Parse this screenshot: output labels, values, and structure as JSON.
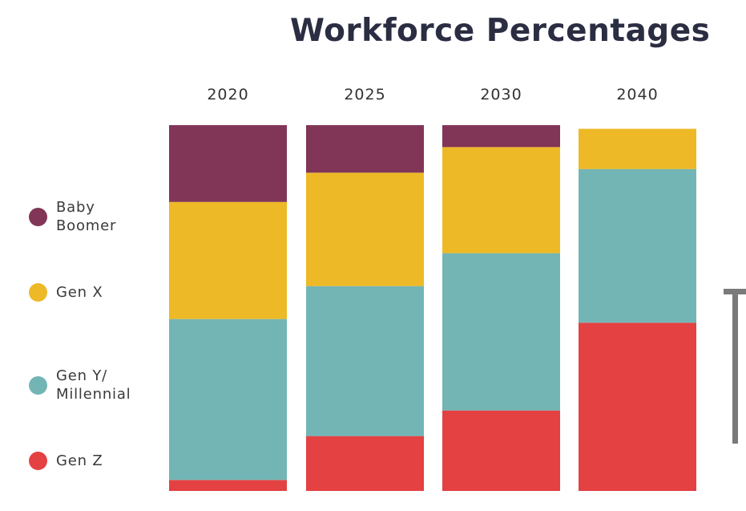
{
  "chart_data": {
    "type": "bar",
    "stacked": true,
    "title": "Workforce Percentages",
    "categories": [
      "2020",
      "2025",
      "2030",
      "2040"
    ],
    "series": [
      {
        "name": "Gen Z",
        "color": "#e34142",
        "values": [
          3,
          15,
          22,
          46
        ]
      },
      {
        "name": "Gen Y/\nMillennial",
        "color": "#73b5b5",
        "values": [
          44,
          41,
          43,
          42
        ]
      },
      {
        "name": "Gen X",
        "color": "#eeb926",
        "values": [
          32,
          31,
          29,
          11
        ]
      },
      {
        "name": "Baby\nBoomer",
        "color": "#813657",
        "values": [
          21,
          13,
          6,
          0
        ]
      }
    ],
    "ylim": [
      0,
      100
    ],
    "legend_position": "left",
    "grid": false,
    "xlabel": "",
    "ylabel": ""
  }
}
